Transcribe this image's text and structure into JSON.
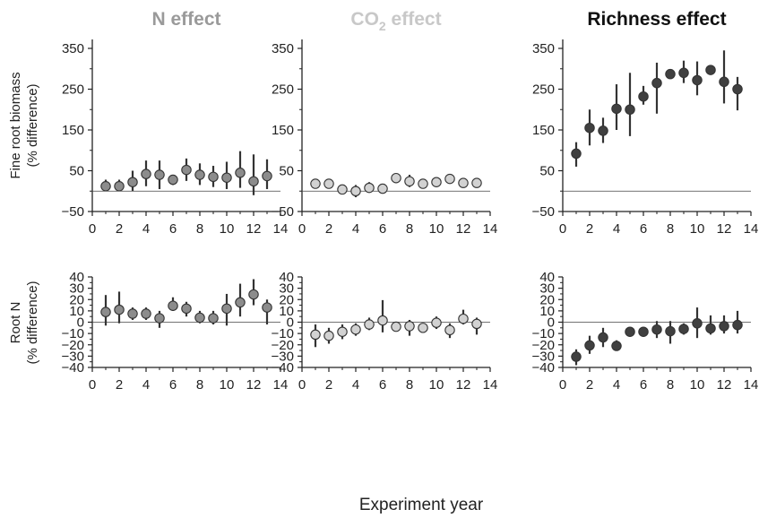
{
  "figure": {
    "col_titles": [
      {
        "main": "N effect",
        "sub": "",
        "tail": "",
        "color": "#9a9a9a"
      },
      {
        "main": "CO",
        "sub": "2",
        "tail": " effect",
        "color": "#c8c8c8"
      },
      {
        "main": "Richness effect",
        "sub": "",
        "tail": "",
        "color": "#111111"
      }
    ],
    "row_ylabels": [
      [
        "Fine root biomass",
        "(% difference)"
      ],
      [
        "Root N",
        "(% difference)"
      ]
    ],
    "xlabel": "Experiment year",
    "marker_fill": [
      "#8c8c8c",
      "#d2d2d2",
      "#404040"
    ]
  },
  "chart_data": [
    {
      "type": "scatter",
      "title": "N effect",
      "ylabel": "Fine root biomass (% difference)",
      "xlim": [
        0,
        14
      ],
      "xticks": [
        0,
        2,
        4,
        6,
        8,
        10,
        12,
        14
      ],
      "ylim": [
        -50,
        400
      ],
      "yticks": [
        -50,
        50,
        150,
        250,
        350
      ],
      "ref_line": 0,
      "x": [
        1,
        2,
        3,
        4,
        5,
        6,
        7,
        8,
        9,
        10,
        11,
        12,
        13
      ],
      "y": [
        12,
        12,
        22,
        42,
        40,
        28,
        52,
        40,
        35,
        33,
        45,
        24,
        37
      ],
      "err_low": [
        0,
        0,
        0,
        12,
        5,
        15,
        25,
        15,
        10,
        5,
        8,
        -10,
        5
      ],
      "err_high": [
        28,
        28,
        50,
        75,
        75,
        40,
        80,
        68,
        62,
        72,
        98,
        90,
        78
      ]
    },
    {
      "type": "scatter",
      "title": "CO2 effect",
      "ylabel": "",
      "xlim": [
        0,
        14
      ],
      "xticks": [
        0,
        2,
        4,
        6,
        8,
        10,
        12,
        14
      ],
      "ylim": [
        -50,
        400
      ],
      "yticks": [
        -50,
        50,
        150,
        250,
        350
      ],
      "ref_line": 0,
      "x": [
        1,
        2,
        3,
        4,
        5,
        6,
        7,
        8,
        9,
        10,
        11,
        12,
        13
      ],
      "y": [
        18,
        18,
        4,
        0,
        8,
        6,
        32,
        24,
        18,
        22,
        30,
        20,
        20
      ],
      "err_low": [
        10,
        10,
        0,
        -15,
        0,
        0,
        20,
        10,
        10,
        12,
        25,
        15,
        15
      ],
      "err_high": [
        28,
        25,
        10,
        15,
        22,
        15,
        42,
        40,
        30,
        30,
        38,
        28,
        28
      ]
    },
    {
      "type": "scatter",
      "title": "Richness effect",
      "ylabel": "",
      "xlim": [
        0,
        14
      ],
      "xticks": [
        0,
        2,
        4,
        6,
        8,
        10,
        12,
        14
      ],
      "ylim": [
        -50,
        400
      ],
      "yticks": [
        -50,
        50,
        150,
        250,
        350
      ],
      "ref_line": 0,
      "x": [
        1,
        2,
        3,
        4,
        5,
        6,
        7,
        8,
        9,
        10,
        11,
        12,
        13
      ],
      "y": [
        92,
        155,
        148,
        202,
        200,
        232,
        265,
        287,
        290,
        272,
        297,
        268,
        250
      ],
      "err_low": [
        60,
        112,
        118,
        150,
        135,
        212,
        190,
        280,
        265,
        235,
        287,
        215,
        198
      ],
      "err_high": [
        120,
        200,
        180,
        262,
        290,
        258,
        315,
        295,
        320,
        318,
        307,
        345,
        280
      ]
    },
    {
      "type": "scatter",
      "title": "",
      "ylabel": "Root N (% difference)",
      "xlim": [
        0,
        14
      ],
      "xticks": [
        0,
        2,
        4,
        6,
        8,
        10,
        12,
        14
      ],
      "ylim": [
        -40,
        40
      ],
      "yticks": [
        -40,
        -30,
        -20,
        -10,
        0,
        10,
        20,
        30,
        40
      ],
      "ref_line": 0,
      "x": [
        1,
        2,
        3,
        4,
        5,
        6,
        7,
        8,
        9,
        10,
        11,
        12,
        13
      ],
      "y": [
        9,
        11,
        7.5,
        7.5,
        3.5,
        14.5,
        12,
        4,
        3.5,
        12,
        17.5,
        24.5,
        13
      ],
      "err_low": [
        -3,
        -1,
        2,
        2,
        -5,
        10,
        5,
        -1,
        -2,
        -3,
        5,
        15,
        -2
      ],
      "err_high": [
        24,
        27,
        13,
        13,
        10,
        22,
        18,
        10,
        10,
        25,
        34,
        38,
        20
      ]
    },
    {
      "type": "scatter",
      "title": "",
      "ylabel": "",
      "xlim": [
        0,
        14
      ],
      "xticks": [
        0,
        2,
        4,
        6,
        8,
        10,
        12,
        14
      ],
      "ylim": [
        -40,
        40
      ],
      "yticks": [
        -40,
        -30,
        -20,
        -10,
        0,
        10,
        20,
        30,
        40
      ],
      "ref_line": 0,
      "x": [
        1,
        2,
        3,
        4,
        5,
        6,
        7,
        8,
        9,
        10,
        11,
        12,
        13
      ],
      "y": [
        -11,
        -12,
        -8.5,
        -6.5,
        -2,
        1.5,
        -4,
        -3.5,
        -5,
        -0.5,
        -7,
        3,
        -1.5
      ],
      "err_low": [
        -22,
        -19,
        -15,
        -12,
        -7,
        -9,
        -6,
        -12,
        -8,
        -6,
        -14,
        -2,
        -11
      ],
      "err_high": [
        -2,
        -5,
        -2,
        -1,
        4,
        19.5,
        -1,
        2,
        -2,
        5,
        -1,
        11,
        4
      ]
    },
    {
      "type": "scatter",
      "title": "",
      "ylabel": "",
      "xlim": [
        0,
        14
      ],
      "xticks": [
        0,
        2,
        4,
        6,
        8,
        10,
        12,
        14
      ],
      "ylim": [
        -40,
        40
      ],
      "yticks": [
        -40,
        -30,
        -20,
        -10,
        0,
        10,
        20,
        30,
        40
      ],
      "ref_line": 0,
      "x": [
        1,
        2,
        3,
        4,
        5,
        6,
        7,
        8,
        9,
        10,
        11,
        12,
        13
      ],
      "y": [
        -30.5,
        -20.5,
        -13.5,
        -21,
        -8.5,
        -8.5,
        -6.5,
        -8,
        -6,
        -1,
        -5.5,
        -3.5,
        -2.5
      ],
      "err_low": [
        -38,
        -28,
        -22,
        -25,
        -10,
        -11,
        -14,
        -19,
        -11,
        -14,
        -11,
        -10,
        -10
      ],
      "err_high": [
        -24,
        -12,
        -5,
        -16,
        -7,
        -6,
        1,
        1,
        -1,
        13,
        6,
        6,
        10
      ]
    }
  ]
}
